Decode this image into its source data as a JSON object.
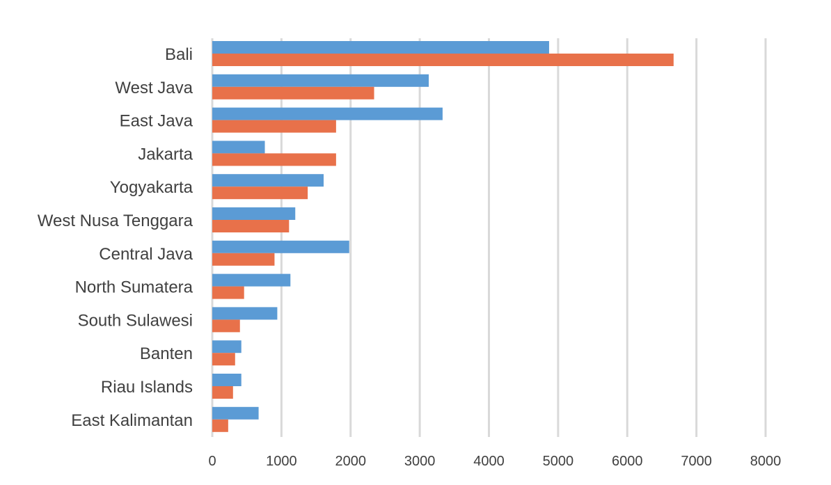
{
  "chart_data": {
    "type": "bar",
    "orientation": "horizontal",
    "title": "",
    "xlabel": "",
    "ylabel": "",
    "categories": [
      "Bali",
      "West Java",
      "East Java",
      "Jakarta",
      "Yogyakarta",
      "West Nusa Tenggara",
      "Central Java",
      "North Sumatera",
      "South Sulawesi",
      "Banten",
      "Riau Islands",
      "East Kalimantan"
    ],
    "series": [
      {
        "values": [
          4870,
          3130,
          3330,
          760,
          1610,
          1200,
          1980,
          1130,
          940,
          420,
          420,
          670
        ],
        "color": "#5b9bd5"
      },
      {
        "values": [
          6670,
          2340,
          1790,
          1790,
          1380,
          1110,
          900,
          460,
          400,
          330,
          300,
          230
        ],
        "color": "#e8714a"
      }
    ],
    "xlim": [
      0,
      8000
    ],
    "xticks": [
      "0",
      "1000",
      "2000",
      "3000",
      "4000",
      "5000",
      "6000",
      "7000",
      "8000"
    ],
    "grid": true,
    "legend": "none"
  }
}
